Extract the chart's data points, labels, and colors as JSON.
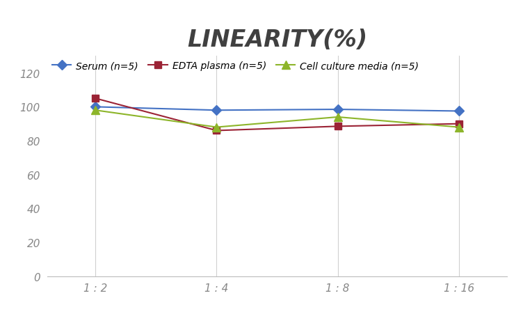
{
  "title": "LINEARITY(%)",
  "title_fontsize": 24,
  "title_fontstyle": "italic",
  "title_fontweight": "bold",
  "title_color": "#404040",
  "x_labels": [
    "1 : 2",
    "1 : 4",
    "1 : 8",
    "1 : 16"
  ],
  "x_positions": [
    0,
    1,
    2,
    3
  ],
  "series": [
    {
      "label": "Serum (n=5)",
      "values": [
        100,
        98,
        98.5,
        97.5
      ],
      "color": "#4472C4",
      "marker": "D",
      "markersize": 7,
      "linewidth": 1.5
    },
    {
      "label": "EDTA plasma (n=5)",
      "values": [
        105,
        86,
        88.5,
        90
      ],
      "color": "#9B2335",
      "marker": "s",
      "markersize": 7,
      "linewidth": 1.5
    },
    {
      "label": "Cell culture media (n=5)",
      "values": [
        98,
        88,
        94,
        88
      ],
      "color": "#8DB52A",
      "marker": "^",
      "markersize": 8,
      "linewidth": 1.5
    }
  ],
  "ylim": [
    0,
    130
  ],
  "yticks": [
    0,
    20,
    40,
    60,
    80,
    100,
    120
  ],
  "grid_color": "#D0D0D0",
  "background_color": "#FFFFFF",
  "legend_fontsize": 10,
  "tick_label_color": "#888888",
  "tick_label_fontsize": 11,
  "spine_color": "#BBBBBB"
}
